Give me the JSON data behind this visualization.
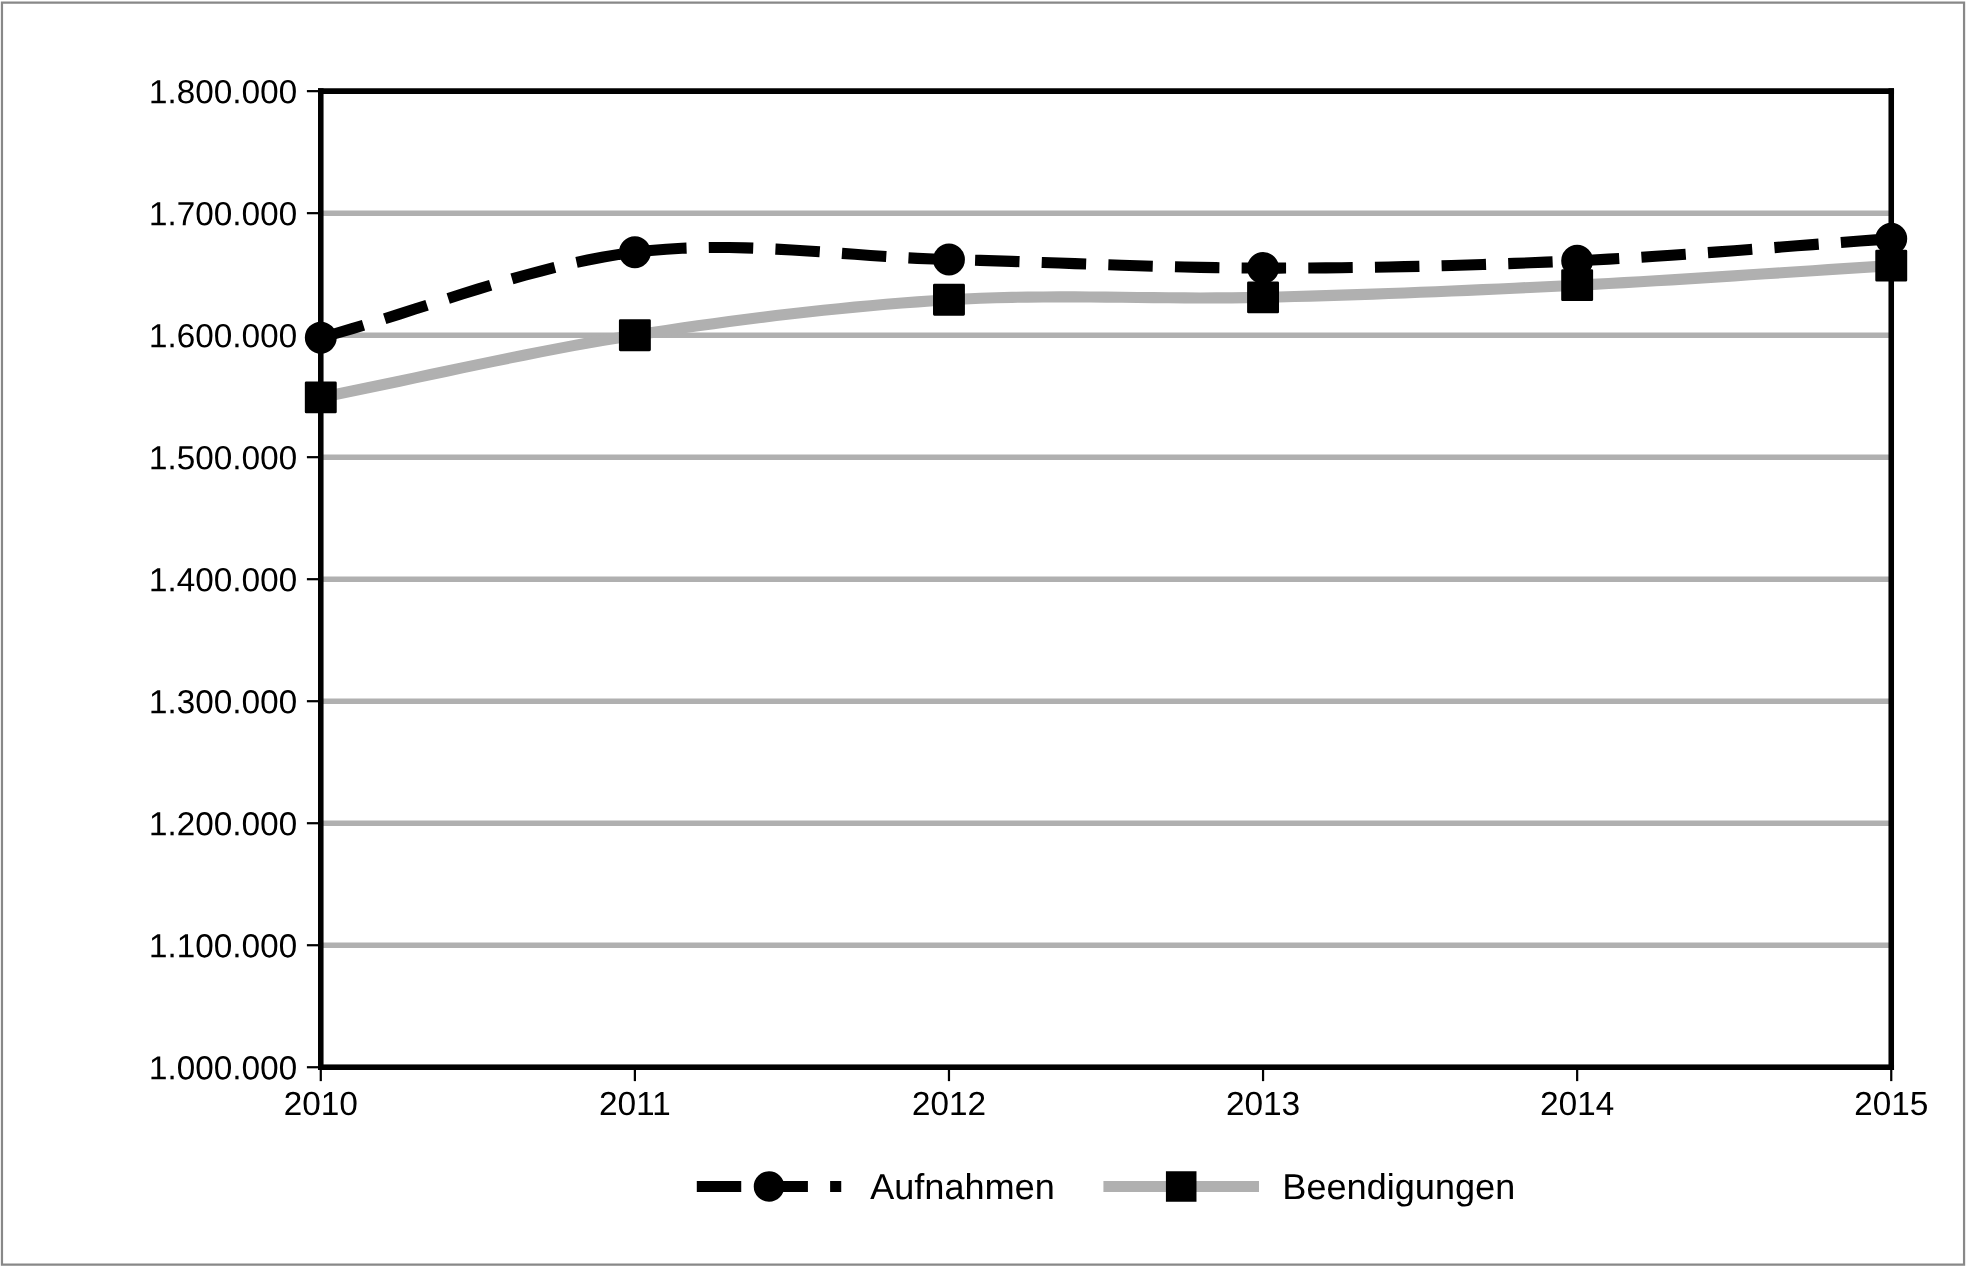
{
  "chart_data": {
    "type": "line",
    "x": [
      2010,
      2011,
      2012,
      2013,
      2014,
      2015
    ],
    "series": [
      {
        "name": "Aufnahmen",
        "color": "#000000",
        "values": [
          1598000,
          1668000,
          1662000,
          1655000,
          1661000,
          1679000
        ],
        "marker": "circle",
        "line_style": "dashed"
      },
      {
        "name": "Beendigungen",
        "color": "#b0b0b0",
        "values": [
          1549000,
          1600000,
          1629000,
          1631000,
          1641000,
          1657000
        ],
        "marker": "square",
        "line_style": "solid"
      }
    ],
    "xlim": [
      2010,
      2015
    ],
    "xticks": [
      2010,
      2011,
      2012,
      2013,
      2014,
      2015
    ],
    "ylim": [
      1000000,
      1800000
    ],
    "yticks": [
      {
        "value": 1000000,
        "label": "1.000.000"
      },
      {
        "value": 1100000,
        "label": "1.100.000"
      },
      {
        "value": 1200000,
        "label": "1.200.000"
      },
      {
        "value": 1300000,
        "label": "1.300.000"
      },
      {
        "value": 1400000,
        "label": "1.400.000"
      },
      {
        "value": 1500000,
        "label": "1.500.000"
      },
      {
        "value": 1600000,
        "label": "1.600.000"
      },
      {
        "value": 1700000,
        "label": "1.700.000"
      },
      {
        "value": 1800000,
        "label": "1.800.000"
      }
    ],
    "grid": "y",
    "legend": "bottom"
  }
}
